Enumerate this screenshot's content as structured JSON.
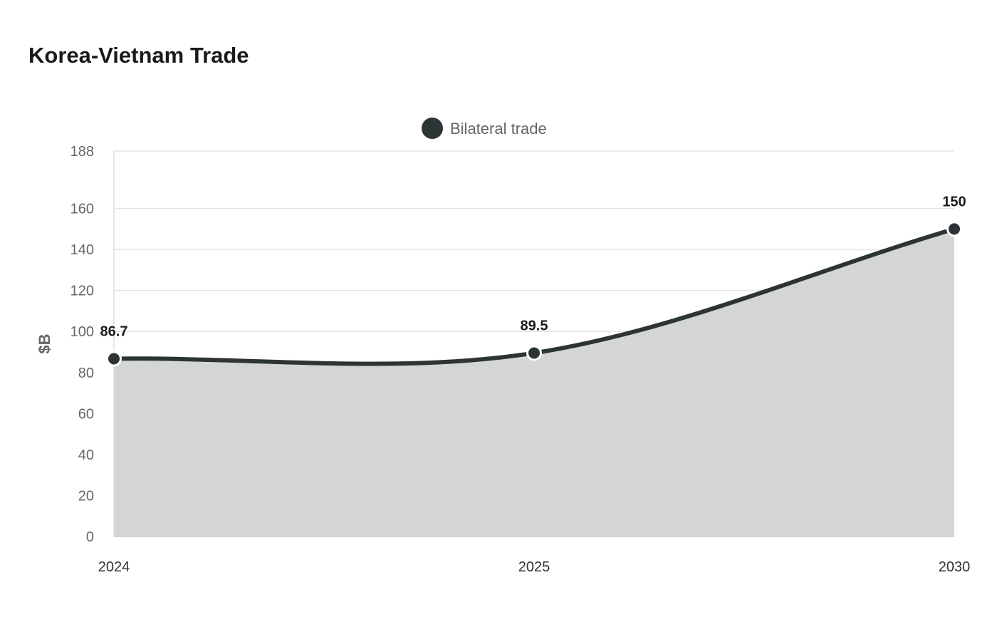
{
  "chart_data": {
    "type": "area",
    "title": "Korea-Vietnam Trade",
    "xlabel": "",
    "ylabel": "$B",
    "categories": [
      "2024",
      "2025",
      "2030"
    ],
    "series": [
      {
        "name": "Bilateral trade",
        "values": [
          86.7,
          89.5,
          150
        ],
        "data_labels": [
          "86.7",
          "89.5",
          "150"
        ]
      }
    ],
    "ylim": [
      0,
      188
    ],
    "y_ticks": [
      0,
      20,
      40,
      60,
      80,
      100,
      120,
      140,
      160,
      188
    ],
    "y_tick_labels": [
      "0",
      "20",
      "40",
      "60",
      "80",
      "100",
      "120",
      "140",
      "160",
      "188"
    ],
    "grid": true,
    "legend_position": "top-center",
    "colors": {
      "line": "#2d3436",
      "fill": "#d4d6d6",
      "grid": "#e5e5e5",
      "marker_stroke": "#ffffff"
    }
  }
}
